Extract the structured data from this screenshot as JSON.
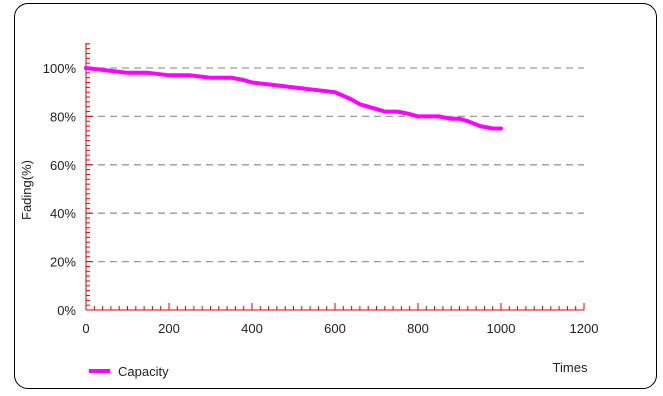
{
  "chart_data": {
    "type": "line",
    "xlabel": "Times",
    "ylabel": "Fading(%)",
    "xlim": [
      0,
      1200
    ],
    "ylim": [
      0,
      110
    ],
    "x_ticks": [
      "0",
      "200",
      "400",
      "600",
      "800",
      "1000",
      "1200"
    ],
    "y_ticks": [
      "0%",
      "20%",
      "40%",
      "60%",
      "80%",
      "100%"
    ],
    "grid": "horizontal dashed",
    "legend_position": "bottom-left",
    "series": [
      {
        "name": "Capacity",
        "color": "#ff00ff",
        "x": [
          0,
          50,
          100,
          150,
          200,
          250,
          300,
          350,
          380,
          400,
          450,
          500,
          550,
          600,
          640,
          660,
          680,
          700,
          720,
          750,
          780,
          800,
          850,
          880,
          900,
          920,
          950,
          980,
          1000
        ],
        "values": [
          100,
          99,
          98,
          98,
          97,
          97,
          96,
          96,
          95,
          94,
          93,
          92,
          91,
          90,
          87,
          85,
          84,
          83,
          82,
          82,
          81,
          80,
          80,
          79,
          79,
          78,
          76,
          75,
          75
        ]
      }
    ]
  }
}
